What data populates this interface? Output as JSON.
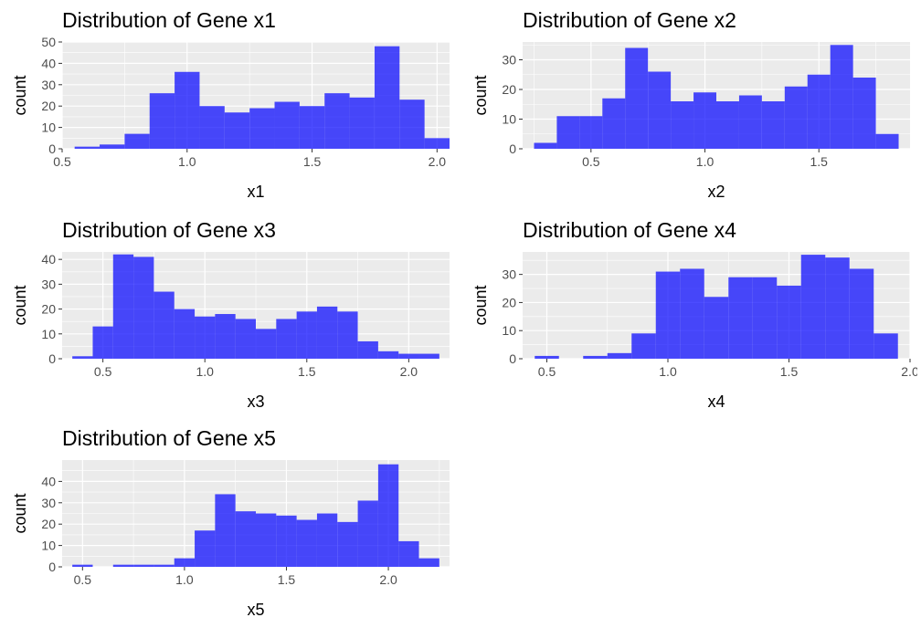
{
  "colors": {
    "bar_fill": "#0000FF",
    "bar_opacity": 0.7,
    "panel_bg": "#EBEBEB",
    "grid": "#FFFFFF",
    "tick_text": "#4D4D4D"
  },
  "chart_data": [
    {
      "type": "bar",
      "title": "Distribution of Gene x1",
      "xlabel": "x1",
      "ylabel": "count",
      "grid": true,
      "xlim": [
        0.5,
        2.05
      ],
      "ylim": [
        0,
        50
      ],
      "xticks": [
        0.5,
        1.0,
        1.5,
        2.0
      ],
      "xtick_labels": [
        "0.5",
        "1.0",
        "1.5",
        "2.0"
      ],
      "yticks": [
        0,
        10,
        20,
        30,
        40,
        50
      ],
      "ytick_labels": [
        "0",
        "10",
        "20",
        "30",
        "40",
        "50"
      ],
      "bin_starts": [
        0.55,
        0.65,
        0.75,
        0.85,
        0.95,
        1.05,
        1.15,
        1.25,
        1.35,
        1.45,
        1.55,
        1.65,
        1.75,
        1.85,
        1.95
      ],
      "bin_width": 0.1,
      "values": [
        1,
        2,
        7,
        26,
        36,
        20,
        17,
        19,
        22,
        20,
        26,
        24,
        48,
        23,
        5
      ]
    },
    {
      "type": "bar",
      "title": "Distribution of Gene x2",
      "xlabel": "x2",
      "ylabel": "count",
      "grid": true,
      "xlim": [
        0.2,
        1.9
      ],
      "ylim": [
        0,
        36
      ],
      "xticks": [
        0.5,
        1.0,
        1.5
      ],
      "xtick_labels": [
        "0.5",
        "1.0",
        "1.5"
      ],
      "yticks": [
        0,
        10,
        20,
        30
      ],
      "ytick_labels": [
        "0",
        "10",
        "20",
        "30"
      ],
      "bin_starts": [
        0.25,
        0.35,
        0.45,
        0.55,
        0.65,
        0.75,
        0.85,
        0.95,
        1.05,
        1.15,
        1.25,
        1.35,
        1.45,
        1.55,
        1.65,
        1.75
      ],
      "bin_width": 0.1,
      "values": [
        2,
        11,
        11,
        17,
        34,
        26,
        16,
        19,
        16,
        18,
        16,
        21,
        25,
        35,
        24,
        5
      ]
    },
    {
      "type": "bar",
      "title": "Distribution of Gene x3",
      "xlabel": "x3",
      "ylabel": "count",
      "grid": true,
      "xlim": [
        0.3,
        2.2
      ],
      "ylim": [
        0,
        43
      ],
      "xticks": [
        0.5,
        1.0,
        1.5,
        2.0
      ],
      "xtick_labels": [
        "0.5",
        "1.0",
        "1.5",
        "2.0"
      ],
      "yticks": [
        0,
        10,
        20,
        30,
        40
      ],
      "ytick_labels": [
        "0",
        "10",
        "20",
        "30",
        "40"
      ],
      "bin_starts": [
        0.35,
        0.45,
        0.55,
        0.65,
        0.75,
        0.85,
        0.95,
        1.05,
        1.15,
        1.25,
        1.35,
        1.45,
        1.55,
        1.65,
        1.75,
        1.85,
        1.95,
        2.05
      ],
      "bin_width": 0.1,
      "values": [
        1,
        13,
        42,
        41,
        27,
        20,
        17,
        18,
        16,
        12,
        16,
        19,
        21,
        19,
        7,
        3,
        2,
        2
      ]
    },
    {
      "type": "bar",
      "title": "Distribution of Gene x4",
      "xlabel": "x4",
      "ylabel": "count",
      "grid": true,
      "xlim": [
        0.4,
        2.0
      ],
      "ylim": [
        0,
        38
      ],
      "xticks": [
        0.5,
        1.0,
        1.5,
        2.0
      ],
      "xtick_labels": [
        "0.5",
        "1.0",
        "1.5",
        "2.0"
      ],
      "yticks": [
        0,
        10,
        20,
        30
      ],
      "ytick_labels": [
        "0",
        "10",
        "20",
        "30"
      ],
      "bin_starts": [
        0.45,
        0.55,
        0.65,
        0.75,
        0.85,
        0.95,
        1.05,
        1.15,
        1.25,
        1.35,
        1.45,
        1.55,
        1.65,
        1.75,
        1.85
      ],
      "bin_width": 0.1,
      "values": [
        1,
        0,
        1,
        2,
        9,
        31,
        32,
        22,
        29,
        29,
        26,
        37,
        36,
        32,
        9
      ]
    },
    {
      "type": "bar",
      "title": "Distribution of Gene x5",
      "xlabel": "x5",
      "ylabel": "count",
      "grid": true,
      "xlim": [
        0.4,
        2.3
      ],
      "ylim": [
        0,
        50
      ],
      "xticks": [
        0.5,
        1.0,
        1.5,
        2.0
      ],
      "xtick_labels": [
        "0.5",
        "1.0",
        "1.5",
        "2.0"
      ],
      "yticks": [
        0,
        10,
        20,
        30,
        40
      ],
      "ytick_labels": [
        "0",
        "10",
        "20",
        "30",
        "40"
      ],
      "bin_starts": [
        0.45,
        0.55,
        0.65,
        0.75,
        0.85,
        0.95,
        1.05,
        1.15,
        1.25,
        1.35,
        1.45,
        1.55,
        1.65,
        1.75,
        1.85,
        1.95,
        2.05,
        2.15
      ],
      "bin_width": 0.1,
      "values": [
        1,
        0,
        1,
        1,
        1,
        4,
        17,
        34,
        26,
        25,
        24,
        22,
        25,
        21,
        31,
        48,
        12,
        4
      ]
    }
  ]
}
